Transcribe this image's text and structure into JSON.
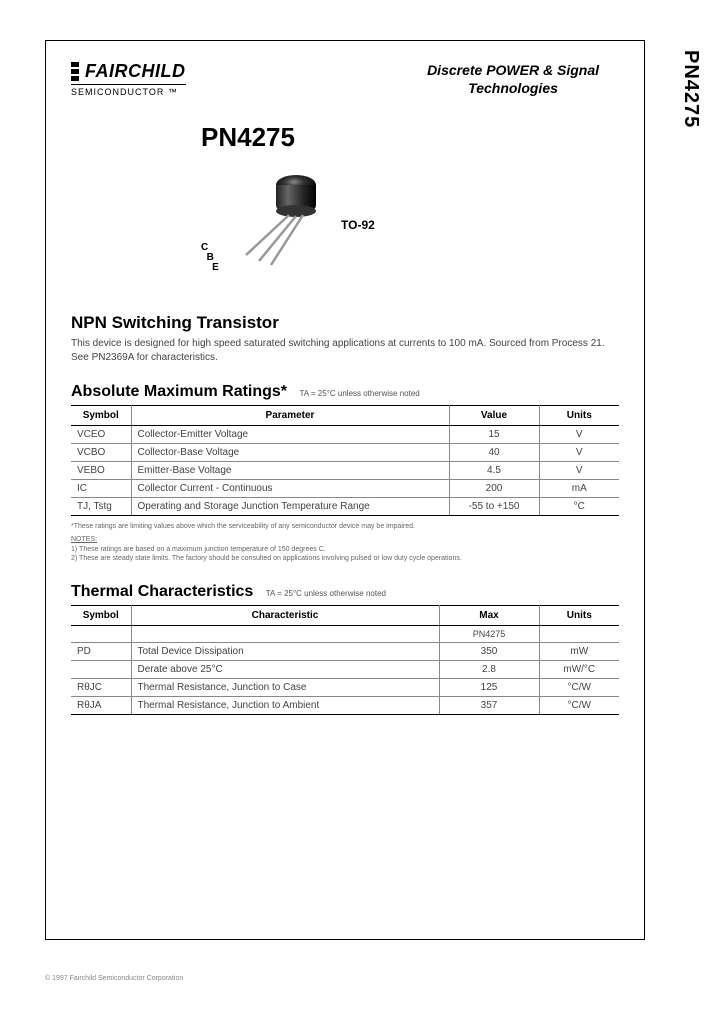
{
  "side_label": "PN4275",
  "logo": {
    "name": "FAIRCHILD",
    "sub": "SEMICONDUCTOR ™"
  },
  "header_right_line1": "Discrete POWER & Signal",
  "header_right_line2": "Technologies",
  "part_number": "PN4275",
  "package_label": "TO-92",
  "pin_c": "C",
  "pin_b": "B",
  "pin_e": "E",
  "product_type": "NPN Switching Transistor",
  "description": "This device is designed for high speed saturated switching applications at currents to 100 mA. Sourced from Process 21. See PN2369A for characteristics.",
  "max_ratings": {
    "title": "Absolute Maximum Ratings*",
    "note": "TA = 25°C unless otherwise noted",
    "columns": [
      "Symbol",
      "Parameter",
      "Value",
      "Units"
    ],
    "rows": [
      {
        "symbol": "VCEO",
        "param": "Collector-Emitter Voltage",
        "value": "15",
        "units": "V"
      },
      {
        "symbol": "VCBO",
        "param": "Collector-Base Voltage",
        "value": "40",
        "units": "V"
      },
      {
        "symbol": "VEBO",
        "param": "Emitter-Base Voltage",
        "value": "4.5",
        "units": "V"
      },
      {
        "symbol": "IC",
        "param": "Collector Current - Continuous",
        "value": "200",
        "units": "mA"
      },
      {
        "symbol": "TJ, Tstg",
        "param": "Operating and Storage Junction Temperature Range",
        "value": "-55 to +150",
        "units": "°C"
      }
    ],
    "footnote": "*These ratings are limiting values above which the serviceability of any semiconductor device may be impaired.",
    "notes_heading": "NOTES:",
    "note1": "1) These ratings are based on a maximum junction temperature of 150 degrees C.",
    "note2": "2) These are steady state limits. The factory should be consulted on applications involving pulsed or low duty cycle operations."
  },
  "thermal": {
    "title": "Thermal Characteristics",
    "note": "TA = 25°C unless otherwise noted",
    "columns": [
      "Symbol",
      "Characteristic",
      "Max",
      "Units"
    ],
    "sub_header": "PN4275",
    "rows": [
      {
        "symbol": "PD",
        "char": "Total Device Dissipation",
        "max": "350",
        "units": "mW"
      },
      {
        "symbol": "",
        "char": "Derate above 25°C",
        "max": "2.8",
        "units": "mW/°C"
      },
      {
        "symbol": "RθJC",
        "char": "Thermal Resistance, Junction to Case",
        "max": "125",
        "units": "°C/W"
      },
      {
        "symbol": "RθJA",
        "char": "Thermal Resistance, Junction to Ambient",
        "max": "357",
        "units": "°C/W"
      }
    ]
  },
  "copyright": "© 1997 Fairchild Semiconductor Corporation"
}
